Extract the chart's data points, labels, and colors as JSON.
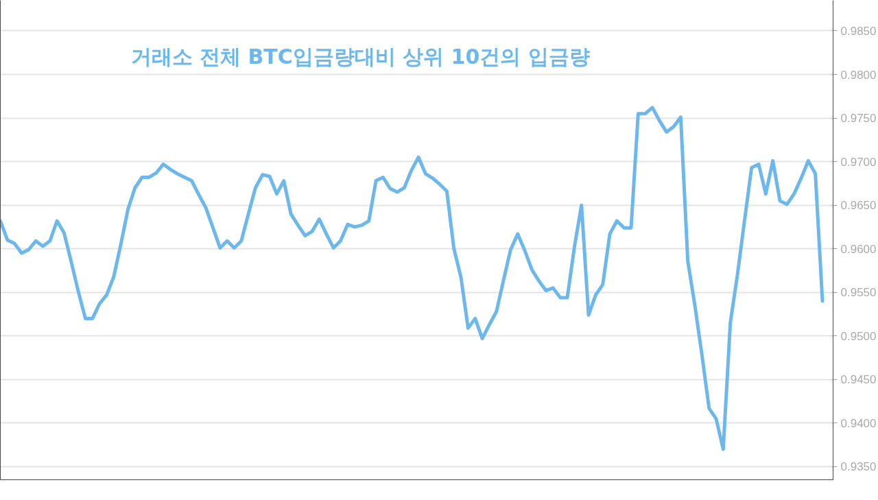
{
  "chart_data": {
    "type": "line",
    "title": "거래소 전체 BTC입금량대비 상위 10건의 입금량",
    "categories": [
      null,
      null,
      null,
      null,
      null,
      null,
      null,
      null,
      null,
      null,
      null,
      null,
      null,
      null,
      null,
      null,
      null,
      null,
      null,
      null,
      null,
      null,
      null,
      null,
      null,
      null,
      null,
      null,
      null,
      null,
      null,
      null,
      null,
      null,
      null,
      null,
      null,
      null,
      null,
      null,
      null,
      null,
      null,
      null,
      null,
      null,
      null,
      null,
      null,
      null,
      null,
      null,
      null,
      null,
      null,
      null,
      null,
      null,
      null,
      null,
      null,
      null,
      null,
      null,
      null,
      null,
      null,
      null,
      null,
      null,
      null,
      null,
      null,
      null,
      null,
      null,
      null,
      null,
      null,
      null,
      null,
      null,
      null,
      null,
      null,
      null,
      null,
      null,
      null,
      null,
      null,
      null,
      null,
      null,
      null,
      null,
      null,
      null,
      null,
      null,
      null,
      null,
      null,
      null,
      null,
      null,
      null,
      null,
      null,
      null,
      null,
      null,
      null,
      null,
      null,
      null,
      null
    ],
    "series": [
      {
        "color": "#6cb8ed",
        "values": [
          0.9632,
          0.961,
          0.9606,
          0.9595,
          0.9599,
          0.9609,
          0.9603,
          0.9609,
          0.9632,
          0.9618,
          0.9585,
          0.9551,
          0.952,
          0.952,
          0.9537,
          0.9547,
          0.9568,
          0.9605,
          0.9645,
          0.967,
          0.9682,
          0.9682,
          0.9687,
          0.9697,
          0.9691,
          0.9686,
          0.9682,
          0.9678,
          0.9662,
          0.9647,
          0.9624,
          0.9601,
          0.9609,
          0.9601,
          0.9609,
          0.964,
          0.967,
          0.9685,
          0.9683,
          0.9663,
          0.9678,
          0.964,
          0.9627,
          0.9615,
          0.962,
          0.9634,
          0.9617,
          0.9601,
          0.9609,
          0.9628,
          0.9625,
          0.9627,
          0.9632,
          0.9678,
          0.9682,
          0.9669,
          0.9665,
          0.967,
          0.969,
          0.9705,
          0.9686,
          0.9681,
          0.9674,
          0.9666,
          0.96,
          0.9567,
          0.9509,
          0.952,
          0.9497,
          0.9513,
          0.9528,
          0.9564,
          0.9599,
          0.9617,
          0.9598,
          0.9576,
          0.9563,
          0.9552,
          0.9555,
          0.9544,
          0.9544,
          0.9602,
          0.965,
          0.9524,
          0.9547,
          0.9559,
          0.9617,
          0.9632,
          0.9624,
          0.9624,
          0.9755,
          0.9755,
          0.9762,
          0.9747,
          0.9734,
          0.974,
          0.9751,
          0.9586,
          0.9535,
          0.9478,
          0.9417,
          0.9405,
          0.937,
          0.9515,
          0.957,
          0.9632,
          0.9693,
          0.9697,
          0.9663,
          0.9701,
          0.9655,
          0.9651,
          0.9663,
          0.9681,
          0.9701,
          0.9686,
          0.954
        ]
      }
    ],
    "ylim": [
      0.9335,
      0.9885
    ],
    "yticks": [
      {
        "value": 0.935,
        "label": "0.9350"
      },
      {
        "value": 0.94,
        "label": "0.9400"
      },
      {
        "value": 0.945,
        "label": "0.9450"
      },
      {
        "value": 0.95,
        "label": "0.9500"
      },
      {
        "value": 0.955,
        "label": "0.9550"
      },
      {
        "value": 0.96,
        "label": "0.9600"
      },
      {
        "value": 0.965,
        "label": "0.9650"
      },
      {
        "value": 0.97,
        "label": "0.9700"
      },
      {
        "value": 0.975,
        "label": "0.9750"
      },
      {
        "value": 0.98,
        "label": "0.9800"
      },
      {
        "value": 0.985,
        "label": "0.9850"
      }
    ],
    "grid": "y"
  }
}
